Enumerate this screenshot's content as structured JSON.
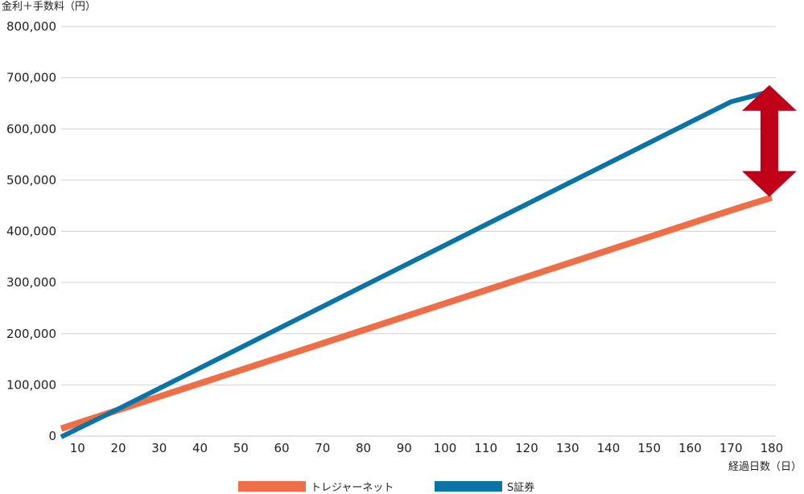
{
  "chart_data": {
    "type": "line",
    "ylabel": "金利＋手数料（円）",
    "xlabel": "経過日数（日）",
    "x": [
      10,
      20,
      30,
      40,
      50,
      60,
      70,
      80,
      90,
      100,
      110,
      120,
      130,
      140,
      150,
      160,
      170,
      180
    ],
    "xlim": [
      6,
      181
    ],
    "ylim": [
      0,
      800000
    ],
    "yticks": [
      0,
      100000,
      200000,
      300000,
      400000,
      500000,
      600000,
      700000,
      800000
    ],
    "ytick_labels": [
      "0",
      "100,000",
      "200,000",
      "300,000",
      "400,000",
      "500,000",
      "600,000",
      "700,000",
      "800,000"
    ],
    "xtick_labels": [
      "10",
      "20",
      "30",
      "40",
      "50",
      "60",
      "70",
      "80",
      "90",
      "100",
      "110",
      "120",
      "130",
      "140",
      "150",
      "160",
      "170",
      "180"
    ],
    "grid": true,
    "legend_position": "bottom-center",
    "series": [
      {
        "name": "トレジャーネット",
        "color": "#ee6e48",
        "values": [
          25000,
          51000,
          77000,
          103000,
          129000,
          155000,
          181000,
          207000,
          233000,
          259000,
          285000,
          311000,
          337000,
          363000,
          389000,
          415000,
          441000,
          466000
        ]
      },
      {
        "name": "S証券",
        "color": "#0a74a4",
        "values": [
          14000,
          53000,
          93000,
          133000,
          173000,
          213000,
          253000,
          293000,
          333000,
          373000,
          413000,
          453000,
          493000,
          533000,
          573000,
          613000,
          653000,
          674000
        ]
      }
    ],
    "annotation": {
      "type": "double-arrow",
      "color": "#c00018",
      "x": 180,
      "y_from": 480000,
      "y_to": 670000
    }
  }
}
